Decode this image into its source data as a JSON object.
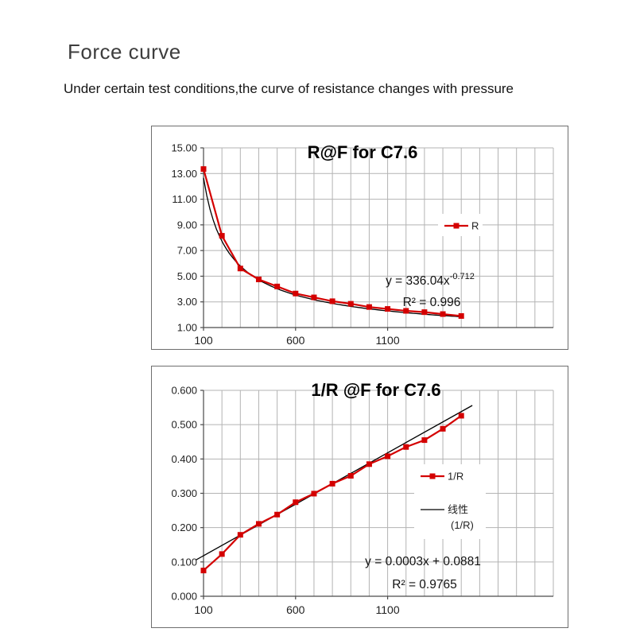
{
  "page": {
    "title": "Force curve",
    "subtitle": "Under certain test conditions,the curve of resistance changes with pressure"
  },
  "colors": {
    "series_red": "#d40000",
    "trend_black": "#000000",
    "grid": "#b3b3b3",
    "axis": "#4a4a4a",
    "text": "#1f1f1f"
  },
  "chart_data": [
    {
      "type": "line",
      "title": "R@F for C7.6",
      "x": [
        100,
        200,
        300,
        400,
        500,
        600,
        700,
        800,
        900,
        1000,
        1100,
        1200,
        1300,
        1400,
        1500
      ],
      "series": [
        {
          "name": "R",
          "color": "#d40000",
          "values": [
            13.35,
            8.15,
            5.6,
            4.75,
            4.2,
            3.65,
            3.35,
            3.05,
            2.85,
            2.6,
            2.45,
            2.3,
            2.2,
            2.05,
            1.9
          ]
        }
      ],
      "trendline": {
        "kind": "power",
        "coef": 336.04,
        "exp": -0.712,
        "x_start": 100,
        "x_end": 1500
      },
      "legend": [
        {
          "label": "R",
          "color": "#d40000",
          "marker": true
        }
      ],
      "annotations": {
        "line1_base": "y = 336.04x",
        "line1_sup": "-0.712",
        "line2": "R² = 0.996"
      },
      "axes": {
        "x_min": 100,
        "x_max": 2000,
        "x_grid_step": 100,
        "x_tick_labels": [
          "100",
          "600",
          "1100"
        ],
        "y_tick_labels": [
          "15.00",
          "13.00",
          "11.00",
          "9.00",
          "7.00",
          "5.00",
          "3.00",
          "1.00"
        ],
        "y_min": 1,
        "y_max": 15,
        "grid": true,
        "legend_position": "right-inside"
      }
    },
    {
      "type": "line",
      "title": "1/R @F for C7.6",
      "x": [
        100,
        200,
        300,
        400,
        500,
        600,
        700,
        800,
        900,
        1000,
        1100,
        1200,
        1300,
        1400,
        1500
      ],
      "series": [
        {
          "name": "1/R",
          "color": "#d40000",
          "values": [
            0.075,
            0.123,
            0.179,
            0.211,
            0.238,
            0.274,
            0.299,
            0.328,
            0.351,
            0.385,
            0.408,
            0.435,
            0.455,
            0.488,
            0.526
          ]
        }
      ],
      "trendline": {
        "kind": "linear",
        "slope": 0.0003,
        "intercept": 0.0881,
        "x_start": 60,
        "x_end": 1560
      },
      "legend": [
        {
          "label": "1/R",
          "color": "#d40000",
          "marker": true
        },
        {
          "label": "线性",
          "label2": "(1/R)",
          "color": "#000000",
          "marker": false
        }
      ],
      "annotations": {
        "line1_base": "y = 0.0003x + 0.0881",
        "line1_sup": "",
        "line2": "R² = 0.9765"
      },
      "axes": {
        "x_min": 100,
        "x_max": 2000,
        "x_grid_step": 100,
        "x_tick_labels": [
          "100",
          "600",
          "1100"
        ],
        "y_tick_labels": [
          "0.600",
          "0.500",
          "0.400",
          "0.300",
          "0.200",
          "0.100",
          "0.000"
        ],
        "y_min": 0,
        "y_max": 0.6,
        "grid": true,
        "legend_position": "right-inside"
      }
    }
  ]
}
